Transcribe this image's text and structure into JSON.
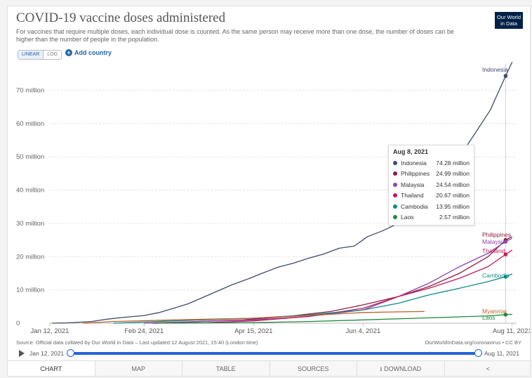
{
  "header": {
    "title": "COVID-19 vaccine doses administered",
    "subtitle": "For vaccines that require multiple doses, each individual dose is counted. As the same person may receive more than one dose, the number of doses can be higher than the number of people in the population.",
    "logo_line1": "Our World",
    "logo_line2": "in Data"
  },
  "controls": {
    "linear_label": "LINEAR",
    "log_label": "LOG",
    "add_country_label": "Add country"
  },
  "tooltip": {
    "date": "Aug 8, 2021",
    "rows": [
      {
        "name": "Indonesia",
        "value": "74.28 million",
        "color": "#3f4a6e"
      },
      {
        "name": "Philippines",
        "value": "24.99 million",
        "color": "#8b1e3f"
      },
      {
        "name": "Malaysia",
        "value": "24.54 million",
        "color": "#8e44ad"
      },
      {
        "name": "Thailand",
        "value": "20.67 million",
        "color": "#c2185b"
      },
      {
        "name": "Cambodia",
        "value": "13.95 million",
        "color": "#0f8a83"
      },
      {
        "name": "Laos",
        "value": "2.57 million",
        "color": "#1e8a3a"
      }
    ]
  },
  "footer": {
    "source": "Source: Official data collated by Our World in Data – Last updated 12 August 2021, 15:40 (London time)",
    "url": "OurWorldInData.org/coronavirus • CC BY"
  },
  "timeline": {
    "start_label": "Jan 12, 2021",
    "end_label": "Aug 11, 2021"
  },
  "tabs": [
    {
      "label": "CHART"
    },
    {
      "label": "MAP"
    },
    {
      "label": "TABLE"
    },
    {
      "label": "SOURCES"
    },
    {
      "label": "DOWNLOAD"
    },
    {
      "label": ""
    }
  ],
  "chart_data": {
    "type": "line",
    "title": "COVID-19 vaccine doses administered",
    "y_ticks": [
      "0",
      "10 million",
      "20 million",
      "30 million",
      "40 million",
      "50 million",
      "60 million",
      "70 million"
    ],
    "ylim": [
      0,
      80000000
    ],
    "x_tick_labels": [
      "Jan 12, 2021",
      "Feb 24, 2021",
      "Apr 15, 2021",
      "Jun 4, 2021",
      "Aug 11, 2021"
    ],
    "x_tick_dates": [
      "2021-01-12",
      "2021-02-24",
      "2021-04-15",
      "2021-06-04",
      "2021-08-11"
    ],
    "xlim": [
      "2021-01-12",
      "2021-08-13"
    ],
    "hover_date": "2021-08-08",
    "grid": true,
    "series": [
      {
        "name": "Indonesia",
        "color": "#3f4a6e",
        "end_label": "Indonesia",
        "points": [
          [
            "2021-01-13",
            0
          ],
          [
            "2021-01-20",
            100000
          ],
          [
            "2021-01-31",
            500000
          ],
          [
            "2021-02-07",
            1200000
          ],
          [
            "2021-02-14",
            1700000
          ],
          [
            "2021-02-24",
            2300000
          ],
          [
            "2021-03-03",
            3200000
          ],
          [
            "2021-03-10",
            4600000
          ],
          [
            "2021-03-16",
            5800000
          ],
          [
            "2021-03-22",
            7500000
          ],
          [
            "2021-03-29",
            9500000
          ],
          [
            "2021-04-05",
            11500000
          ],
          [
            "2021-04-12",
            13200000
          ],
          [
            "2021-04-19",
            15000000
          ],
          [
            "2021-04-26",
            16800000
          ],
          [
            "2021-05-03",
            18000000
          ],
          [
            "2021-05-10",
            19500000
          ],
          [
            "2021-05-17",
            20800000
          ],
          [
            "2021-05-24",
            22500000
          ],
          [
            "2021-05-31",
            23200000
          ],
          [
            "2021-06-06",
            26000000
          ],
          [
            "2021-06-13",
            27800000
          ],
          [
            "2021-06-20",
            30000000
          ],
          [
            "2021-06-27",
            33000000
          ],
          [
            "2021-07-04",
            37000000
          ],
          [
            "2021-07-11",
            42000000
          ],
          [
            "2021-07-18",
            50000000
          ],
          [
            "2021-07-25",
            57000000
          ],
          [
            "2021-08-01",
            64000000
          ],
          [
            "2021-08-08",
            74280000
          ],
          [
            "2021-08-11",
            78500000
          ]
        ]
      },
      {
        "name": "Philippines",
        "color": "#8b1e3f",
        "end_label": "Philippines",
        "points": [
          [
            "2021-03-01",
            0
          ],
          [
            "2021-03-20",
            500000
          ],
          [
            "2021-04-10",
            1000000
          ],
          [
            "2021-04-30",
            2000000
          ],
          [
            "2021-05-20",
            3500000
          ],
          [
            "2021-06-04",
            5500000
          ],
          [
            "2021-06-20",
            8000000
          ],
          [
            "2021-07-04",
            11000000
          ],
          [
            "2021-07-18",
            15000000
          ],
          [
            "2021-07-31",
            20000000
          ],
          [
            "2021-08-08",
            24990000
          ],
          [
            "2021-08-11",
            26000000
          ]
        ]
      },
      {
        "name": "Malaysia",
        "color": "#8e44ad",
        "end_label": "Malaysia",
        "points": [
          [
            "2021-02-24",
            0
          ],
          [
            "2021-03-20",
            500000
          ],
          [
            "2021-04-15",
            1000000
          ],
          [
            "2021-05-10",
            2000000
          ],
          [
            "2021-06-04",
            4000000
          ],
          [
            "2021-06-20",
            8000000
          ],
          [
            "2021-07-04",
            12000000
          ],
          [
            "2021-07-18",
            17000000
          ],
          [
            "2021-07-31",
            21000000
          ],
          [
            "2021-08-08",
            24540000
          ],
          [
            "2021-08-11",
            25500000
          ]
        ]
      },
      {
        "name": "Thailand",
        "color": "#c2185b",
        "end_label": "Thailand",
        "points": [
          [
            "2021-02-28",
            0
          ],
          [
            "2021-03-25",
            200000
          ],
          [
            "2021-04-15",
            700000
          ],
          [
            "2021-05-10",
            2000000
          ],
          [
            "2021-06-04",
            4500000
          ],
          [
            "2021-06-20",
            8000000
          ],
          [
            "2021-07-04",
            10500000
          ],
          [
            "2021-07-18",
            13500000
          ],
          [
            "2021-07-31",
            17000000
          ],
          [
            "2021-08-08",
            20670000
          ],
          [
            "2021-08-11",
            22000000
          ]
        ]
      },
      {
        "name": "Cambodia",
        "color": "#0f8a83",
        "end_label": "Cambodia",
        "points": [
          [
            "2021-02-10",
            0
          ],
          [
            "2021-03-10",
            700000
          ],
          [
            "2021-04-15",
            1500000
          ],
          [
            "2021-05-10",
            2500000
          ],
          [
            "2021-06-04",
            4000000
          ],
          [
            "2021-06-20",
            6000000
          ],
          [
            "2021-07-04",
            8500000
          ],
          [
            "2021-07-18",
            10500000
          ],
          [
            "2021-07-31",
            12500000
          ],
          [
            "2021-08-08",
            13950000
          ],
          [
            "2021-08-11",
            14800000
          ]
        ]
      },
      {
        "name": "Myanmar",
        "color": "#c0602a",
        "end_label": "Myanmar",
        "points": [
          [
            "2021-01-27",
            0
          ],
          [
            "2021-02-10",
            500000
          ],
          [
            "2021-03-10",
            1000000
          ],
          [
            "2021-04-15",
            1500000
          ],
          [
            "2021-05-10",
            2300000
          ],
          [
            "2021-06-04",
            3200000
          ],
          [
            "2021-06-20",
            3400000
          ],
          [
            "2021-07-02",
            3500000
          ]
        ]
      },
      {
        "name": "Laos",
        "color": "#1e8a3a",
        "end_label": "Laos",
        "points": [
          [
            "2021-03-01",
            0
          ],
          [
            "2021-04-15",
            200000
          ],
          [
            "2021-05-10",
            500000
          ],
          [
            "2021-06-04",
            1000000
          ],
          [
            "2021-07-04",
            1600000
          ],
          [
            "2021-07-31",
            2200000
          ],
          [
            "2021-08-08",
            2570000
          ],
          [
            "2021-08-11",
            2650000
          ]
        ]
      }
    ]
  }
}
